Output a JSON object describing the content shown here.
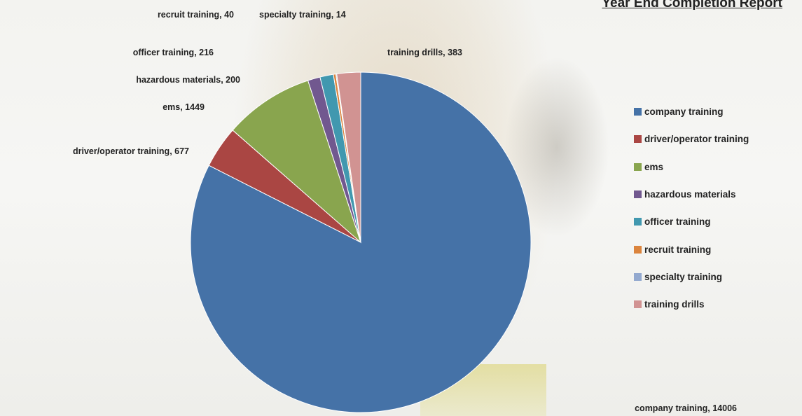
{
  "chart_data": {
    "type": "pie",
    "title": "Year End Completion Report",
    "legend_position": "right",
    "series": [
      {
        "name": "company training",
        "value": 14006,
        "color": "#4572A7"
      },
      {
        "name": "driver/operator training",
        "value": 677,
        "color": "#AA4643"
      },
      {
        "name": "ems",
        "value": 1449,
        "color": "#89A54E"
      },
      {
        "name": "hazardous materials",
        "value": 200,
        "color": "#71588F"
      },
      {
        "name": "officer training",
        "value": 216,
        "color": "#4198AF"
      },
      {
        "name": "recruit training",
        "value": 40,
        "color": "#DB843D"
      },
      {
        "name": "specialty training",
        "value": 14,
        "color": "#93A9CF"
      },
      {
        "name": "training drills",
        "value": 383,
        "color": "#D19392"
      }
    ],
    "data_labels": [
      "company training, 14006",
      "driver/operator training, 677",
      "ems, 1449",
      "hazardous materials, 200",
      "officer training, 216",
      "recruit training, 40",
      "specialty training, 14",
      "training drills, 383"
    ]
  }
}
